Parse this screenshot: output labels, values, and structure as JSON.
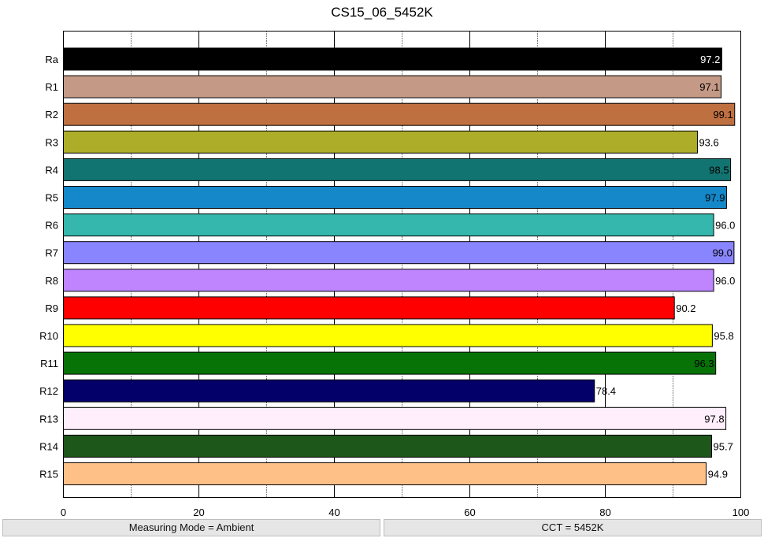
{
  "chart_data": {
    "type": "bar",
    "orientation": "horizontal",
    "title": "CS15_06_5452K",
    "xlabel": "",
    "ylabel": "",
    "xlim": [
      0,
      100
    ],
    "x_ticks": [
      0,
      20,
      40,
      60,
      80,
      100
    ],
    "x_tick_labels": [
      "0",
      "20",
      "40",
      "60",
      "80",
      "100"
    ],
    "minor_gridlines_at": [
      10,
      30,
      50,
      70,
      90
    ],
    "grid": true,
    "categories": [
      "Ra",
      "R1",
      "R2",
      "R3",
      "R4",
      "R5",
      "R6",
      "R7",
      "R8",
      "R9",
      "R10",
      "R11",
      "R12",
      "R13",
      "R14",
      "R15"
    ],
    "values": [
      97.2,
      97.1,
      99.1,
      93.6,
      98.5,
      97.9,
      96.0,
      99.0,
      96.0,
      90.2,
      95.8,
      96.3,
      78.4,
      97.8,
      95.7,
      94.9
    ],
    "value_labels": [
      "97.2",
      "97.1",
      "99.1",
      "93.6",
      "98.5",
      "97.9",
      "96.0",
      "99.0",
      "96.0",
      "90.2",
      "95.8",
      "96.3",
      "78.4",
      "97.8",
      "95.7",
      "94.9"
    ],
    "bar_colors": [
      "#000000",
      "#c49a86",
      "#bf7040",
      "#adad2a",
      "#127471",
      "#1488c8",
      "#35b7ad",
      "#8985ff",
      "#bf85ff",
      "#ff0000",
      "#ffff00",
      "#077307",
      "#030069",
      "#ffeefc",
      "#1e571a",
      "#ffc088"
    ],
    "label_colors": [
      "#ffffff",
      "#000000",
      "#000000",
      "#000000",
      "#000000",
      "#000000",
      "#000000",
      "#000000",
      "#000000",
      "#000000",
      "#000000",
      "#000000",
      "#000000",
      "#000000",
      "#000000",
      "#000000"
    ]
  },
  "status": {
    "left": "Measuring Mode = Ambient",
    "right": "CCT = 5452K"
  }
}
